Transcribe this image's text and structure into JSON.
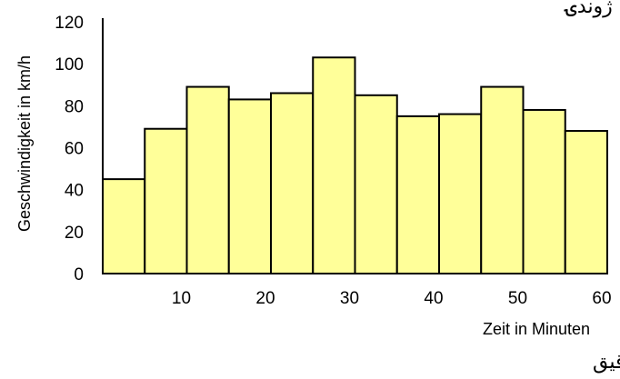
{
  "chart_data": {
    "type": "bar",
    "title": "",
    "top_text": "ژوندۍ",
    "xlabel": "Zeit in Minuten",
    "xlabel_alt": "وخت په دقیق",
    "ylabel": "Geschwindigkeit in km/h",
    "x_ticks": [
      "10",
      "20",
      "30",
      "40",
      "50",
      "60"
    ],
    "y_ticks": [
      "0",
      "20",
      "40",
      "60",
      "80",
      "100",
      "120"
    ],
    "ylim": [
      0,
      120
    ],
    "xlim": [
      0,
      60
    ],
    "bar_width": 5,
    "bars": [
      {
        "x_start": 0,
        "value": 45
      },
      {
        "x_start": 5,
        "value": 69
      },
      {
        "x_start": 10,
        "value": 89
      },
      {
        "x_start": 15,
        "value": 83
      },
      {
        "x_start": 20,
        "value": 86
      },
      {
        "x_start": 25,
        "value": 103
      },
      {
        "x_start": 30,
        "value": 85
      },
      {
        "x_start": 35,
        "value": 75
      },
      {
        "x_start": 40,
        "value": 76
      },
      {
        "x_start": 45,
        "value": 89
      },
      {
        "x_start": 50,
        "value": 78
      },
      {
        "x_start": 55,
        "value": 68
      }
    ],
    "grid": false,
    "legend": "none",
    "colors": {
      "bar_fill": "#ffff99",
      "bar_stroke": "#000000",
      "axis": "#000000"
    }
  }
}
